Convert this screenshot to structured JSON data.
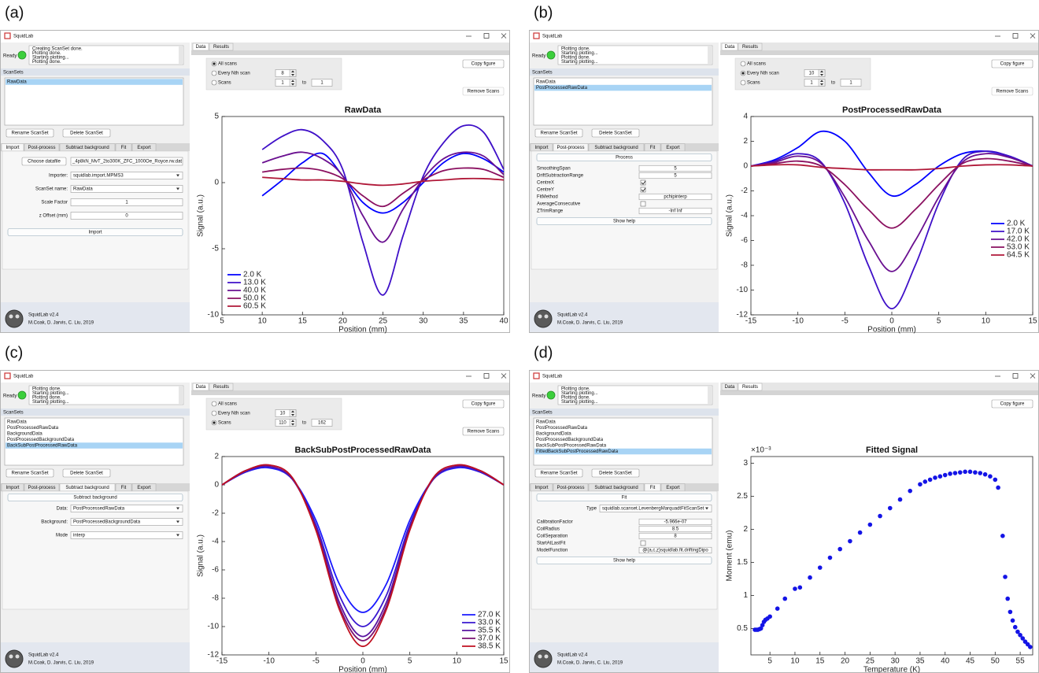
{
  "panels": [
    {
      "label": "(a)",
      "window_title": "SquidLab",
      "status": "Ready",
      "log": [
        "Creating ScanSet done.",
        "Plotting done.",
        "Starting plotting...",
        "Plotting done."
      ],
      "scansets_label": "ScanSets",
      "scansets": [
        "RawData"
      ],
      "selected_scanset": 0,
      "buttons": [
        "Rename ScanSet",
        "Delete ScanSet"
      ],
      "left_tabs": [
        "Import",
        "Post-process",
        "Subtract background",
        "Fit",
        "Export"
      ],
      "active_left_tab": 0,
      "form": [
        {
          "kind": "file",
          "text": "Choose datafile",
          "value": "_4p8kN_MvT_2to300K_ZFC_1000Oe_Royce.rw.dat"
        },
        {
          "kind": "dropdown",
          "label": "Importer:",
          "value": "squidlab.import.MPMS3"
        },
        {
          "kind": "dropdown",
          "label": "ScanSet name:",
          "value": "RawData"
        },
        {
          "kind": "field",
          "label": "Scale Factor",
          "value": 1
        },
        {
          "kind": "field",
          "label": "z Offset (mm)",
          "value": 0
        },
        {
          "kind": "button",
          "text": "Import"
        }
      ],
      "footer": [
        "SquidLab v2.4",
        "M.Coak, D. Jarvis, C. Liu, 2019"
      ],
      "right_tabs": [
        "Data",
        "Results"
      ],
      "active_right_tab": 0,
      "scan_options": {
        "options": [
          "All scans",
          "Every Nth scan",
          "Scans"
        ],
        "selected": 0,
        "nth": 8,
        "from": 1,
        "to_label": "to",
        "to": 1
      },
      "copy_button": "Copy figure",
      "remove_button": "Remove Scans",
      "remove_enabled": false,
      "chart": {
        "type": "line",
        "title": "RawData",
        "xlabel": "Position (mm)",
        "ylabel": "Signal (a.u.)",
        "x": [
          10,
          12.5,
          15,
          17.5,
          20,
          22.5,
          25,
          27.5,
          30,
          32.5,
          35,
          37.5,
          40
        ],
        "series": [
          {
            "name": "2.0 K",
            "color": "#0000ff",
            "values": [
              -1,
              0.2,
              1.5,
              2.2,
              0.5,
              -1.5,
              -2.3,
              -1.5,
              0,
              1.5,
              2.2,
              1.8,
              0.8
            ]
          },
          {
            "name": "13.0 K",
            "color": "#3f10c8",
            "values": [
              2.5,
              3.5,
              4.0,
              3.2,
              1.0,
              -4.5,
              -8.5,
              -4.0,
              0.5,
              3.0,
              4.3,
              3.8,
              1.0
            ]
          },
          {
            "name": "40.0 K",
            "color": "#6a1090",
            "values": [
              1.5,
              2.0,
              2.3,
              1.8,
              0.5,
              -2.5,
              -4.5,
              -2.0,
              0.3,
              1.8,
              2.3,
              2.0,
              0.6
            ]
          },
          {
            "name": "50.0 K",
            "color": "#8a1060",
            "values": [
              0.8,
              1.0,
              1.1,
              0.9,
              0.3,
              -1.0,
              -1.8,
              -0.8,
              0.2,
              0.9,
              1.1,
              1.0,
              0.4
            ]
          },
          {
            "name": "60.5 K",
            "color": "#b01838",
            "values": [
              0.4,
              0.3,
              0.2,
              0.2,
              0.1,
              -0.1,
              -0.2,
              -0.1,
              0.1,
              0.2,
              0.3,
              0.3,
              0.2
            ]
          }
        ],
        "xlim": [
          5,
          40
        ],
        "xticks": [
          5,
          10,
          15,
          20,
          25,
          30,
          35,
          40
        ],
        "ylim": [
          -10,
          5
        ],
        "yticks": [
          -10,
          -5,
          0,
          5
        ],
        "legend": "lower left"
      }
    },
    {
      "label": "(b)",
      "window_title": "SquidLab",
      "status": "Ready",
      "log": [
        "Plotting done.",
        "Starting plotting...",
        "Plotting done.",
        "Starting plotting..."
      ],
      "scansets_label": "ScanSets",
      "scansets": [
        "RawData",
        "PostProcessedRawData"
      ],
      "selected_scanset": 1,
      "buttons": [
        "Rename ScanSet",
        "Delete ScanSet"
      ],
      "left_tabs": [
        "Import",
        "Post-process",
        "Subtract background",
        "Fit",
        "Export"
      ],
      "active_left_tab": 1,
      "form": [
        {
          "kind": "button",
          "text": "Process"
        },
        {
          "kind": "prop",
          "label": "SmoothingSpan",
          "value": 5
        },
        {
          "kind": "prop",
          "label": "DriftSubtractionRange",
          "value": 5
        },
        {
          "kind": "check",
          "label": "CentreX",
          "checked": true
        },
        {
          "kind": "check",
          "label": "CentreY",
          "checked": true
        },
        {
          "kind": "prop",
          "label": "FitMethod",
          "value": "pchipinterp"
        },
        {
          "kind": "check",
          "label": "AverageConsecutive",
          "checked": false
        },
        {
          "kind": "prop",
          "label": "ZTrimRange",
          "value": "-Inf Inf"
        },
        {
          "kind": "button",
          "text": "Show help"
        }
      ],
      "footer": [
        "SquidLab v2.4",
        "M.Coak, D. Jarvis, C. Liu, 2019"
      ],
      "right_tabs": [
        "Data",
        "Results"
      ],
      "active_right_tab": 0,
      "scan_options": {
        "options": [
          "All scans",
          "Every Nth scan",
          "Scans"
        ],
        "selected": 1,
        "nth": 10,
        "from": 1,
        "to_label": "to",
        "to": 1
      },
      "copy_button": "Copy figure",
      "remove_button": "Remove Scans",
      "remove_enabled": false,
      "chart": {
        "type": "line",
        "title": "PostProcessedRawData",
        "xlabel": "Position (mm)",
        "ylabel": "Signal (a.u.)",
        "x": [
          -15,
          -12.5,
          -10,
          -7.5,
          -5,
          -2.5,
          0,
          2.5,
          5,
          7.5,
          10,
          12.5,
          15
        ],
        "series": [
          {
            "name": "2.0 K",
            "color": "#0000ff",
            "values": [
              0,
              0.5,
              1.5,
              2.8,
              2.0,
              -0.5,
              -2.4,
              -1.5,
              0,
              1.0,
              1.2,
              0.8,
              0
            ]
          },
          {
            "name": "17.0 K",
            "color": "#3f10c8",
            "values": [
              0,
              0.4,
              1.0,
              0.3,
              -3.0,
              -8,
              -11.5,
              -8,
              -3,
              0.5,
              1.2,
              0.8,
              0
            ]
          },
          {
            "name": "42.0 K",
            "color": "#6a1090",
            "values": [
              0,
              0.3,
              0.8,
              0.2,
              -2.5,
              -6,
              -8.5,
              -6,
              -2.5,
              0.3,
              1.0,
              0.7,
              0
            ]
          },
          {
            "name": "53.0 K",
            "color": "#8a1060",
            "values": [
              0,
              0.2,
              0.4,
              0,
              -1.5,
              -3.5,
              -5,
              -3.5,
              -1.5,
              0.2,
              0.6,
              0.4,
              0
            ]
          },
          {
            "name": "64.5 K",
            "color": "#b01838",
            "values": [
              0,
              0.1,
              0.1,
              -0.1,
              -0.2,
              -0.3,
              -0.3,
              -0.3,
              -0.2,
              0,
              0.1,
              0.1,
              0
            ]
          }
        ],
        "xlim": [
          -15,
          15
        ],
        "xticks": [
          -15,
          -10,
          -5,
          0,
          5,
          10,
          15
        ],
        "ylim": [
          -12,
          4
        ],
        "yticks": [
          -12,
          -10,
          -8,
          -6,
          -4,
          -2,
          0,
          2,
          4
        ],
        "legend": "center right"
      }
    },
    {
      "label": "(c)",
      "window_title": "SquidLab",
      "status": "Ready",
      "log": [
        "Plotting done.",
        "Starting plotting...",
        "Plotting done.",
        "Starting plotting..."
      ],
      "scansets_label": "ScanSets",
      "scansets": [
        "RawData",
        "PostProcessedRawData",
        "BackgroundData",
        "PostProcessedBackgroundData",
        "BackSubPostProcessedRawData"
      ],
      "selected_scanset": 4,
      "buttons": [
        "Rename ScanSet",
        "Delete ScanSet"
      ],
      "left_tabs": [
        "Import",
        "Post-process",
        "Subtract background",
        "Fit",
        "Export"
      ],
      "active_left_tab": 2,
      "form": [
        {
          "kind": "button",
          "text": "Subtract background"
        },
        {
          "kind": "dropdown",
          "label": "Data:",
          "value": "PostProcessedRawData"
        },
        {
          "kind": "dropdown",
          "label": "Background:",
          "value": "PostProcessedBackgroundData"
        },
        {
          "kind": "dropdown",
          "label": "Mode",
          "value": "interp"
        }
      ],
      "footer": [
        "SquidLab v2.4",
        "M.Coak, D. Jarvis, C. Liu, 2019"
      ],
      "right_tabs": [
        "Data",
        "Results"
      ],
      "active_right_tab": 0,
      "scan_options": {
        "options": [
          "All scans",
          "Every Nth scan",
          "Scans"
        ],
        "selected": 2,
        "nth": 10,
        "from": 110,
        "to_label": "to",
        "to": 162
      },
      "copy_button": "Copy figure",
      "remove_button": "Remove Scans",
      "remove_enabled": true,
      "chart": {
        "type": "line",
        "title": "BackSubPostProcessedRawData",
        "xlabel": "Position (mm)",
        "ylabel": "Signal (a.u.)",
        "x": [
          -15,
          -12.5,
          -10,
          -7.5,
          -5,
          -2.5,
          0,
          2.5,
          5,
          7.5,
          10,
          12.5,
          15
        ],
        "series": [
          {
            "name": "27.0 K",
            "color": "#1a1aff",
            "values": [
              0,
              0.9,
              1.2,
              0.4,
              -2.5,
              -7.0,
              -9.0,
              -7.0,
              -2.5,
              0.4,
              1.2,
              0.9,
              0
            ]
          },
          {
            "name": "33.0 K",
            "color": "#3a18d0",
            "values": [
              0,
              0.9,
              1.3,
              0.4,
              -2.8,
              -7.8,
              -10.0,
              -7.8,
              -2.8,
              0.4,
              1.3,
              0.9,
              0
            ]
          },
          {
            "name": "35.5 K",
            "color": "#5a14a0",
            "values": [
              0,
              1.0,
              1.3,
              0.4,
              -3.0,
              -8.3,
              -10.7,
              -8.3,
              -3.0,
              0.4,
              1.3,
              1.0,
              0
            ]
          },
          {
            "name": "37.0 K",
            "color": "#7a1070",
            "values": [
              0,
              1.0,
              1.4,
              0.5,
              -3.1,
              -8.6,
              -11.0,
              -8.6,
              -3.1,
              0.5,
              1.4,
              1.0,
              0
            ]
          },
          {
            "name": "38.5 K",
            "color": "#c01020",
            "values": [
              0,
              1.0,
              1.4,
              0.5,
              -3.2,
              -8.8,
              -11.4,
              -8.8,
              -3.2,
              0.5,
              1.4,
              1.0,
              0
            ]
          }
        ],
        "xlim": [
          -15,
          15
        ],
        "xticks": [
          -15,
          -10,
          -5,
          0,
          5,
          10,
          15
        ],
        "ylim": [
          -12,
          2
        ],
        "yticks": [
          -12,
          -10,
          -8,
          -6,
          -4,
          -2,
          0,
          2
        ],
        "legend": "lower right"
      }
    },
    {
      "label": "(d)",
      "window_title": "SquidLab",
      "status": "Ready",
      "log": [
        "Plotting done.",
        "Starting plotting...",
        "Plotting done.",
        "Starting plotting..."
      ],
      "scansets_label": "ScanSets",
      "scansets": [
        "RawData",
        "PostProcessedRawData",
        "BackgroundData",
        "PostProcessedBackgroundData",
        "BackSubPostProcessedRawData",
        "FittedBackSubPostProcessedRawData"
      ],
      "selected_scanset": 5,
      "buttons": [
        "Rename ScanSet",
        "Delete ScanSet"
      ],
      "left_tabs": [
        "Import",
        "Post-process",
        "Subtract background",
        "Fit",
        "Export"
      ],
      "active_left_tab": 3,
      "form": [
        {
          "kind": "button",
          "text": "Fit"
        },
        {
          "kind": "dropdown",
          "label": "Type",
          "value": "squidlab.scanset.LevenbergMarquadtFitScanSet"
        },
        {
          "kind": "prop",
          "label": "CalibrationFactor",
          "value": "-5.966e-07"
        },
        {
          "kind": "prop",
          "label": "CoilRadius",
          "value": 8.5
        },
        {
          "kind": "prop",
          "label": "CoilSeparation",
          "value": 8
        },
        {
          "kind": "check",
          "label": "StartAtLastFit",
          "checked": false
        },
        {
          "kind": "prop",
          "label": "ModelFunction",
          "value": "@(a,c,z)squidlab.fit.driftingDipo"
        },
        {
          "kind": "button",
          "text": "Show help"
        }
      ],
      "footer": [
        "SquidLab v2.4",
        "M.Coak, D. Jarvis, C. Liu, 2019"
      ],
      "right_tabs": [
        "Data",
        "Results"
      ],
      "active_right_tab": 1,
      "copy_button": "Copy figure",
      "chart": {
        "type": "scatter",
        "title": "Fitted Signal",
        "xlabel": "Temperature (K)",
        "ylabel": "Moment (emu)",
        "y_multiplier": "×10⁻³",
        "color": "#1414e6",
        "x": [
          2,
          2.3,
          2.6,
          2.9,
          3.2,
          3.5,
          3.8,
          4.1,
          4.5,
          5,
          6.5,
          8,
          10,
          11,
          13,
          15,
          17,
          19,
          21,
          23,
          25,
          27,
          29,
          31,
          33,
          35,
          36,
          37,
          38,
          39,
          40,
          41,
          42,
          43,
          44,
          45,
          46,
          47,
          48,
          49,
          50,
          50.6,
          51.5,
          52,
          52.5,
          53,
          53.5,
          54,
          54.5,
          55,
          55.5,
          56,
          56.5,
          57
        ],
        "values": [
          0.48,
          0.48,
          0.48,
          0.49,
          0.5,
          0.55,
          0.6,
          0.63,
          0.65,
          0.68,
          0.8,
          0.95,
          1.1,
          1.12,
          1.27,
          1.42,
          1.57,
          1.7,
          1.82,
          1.95,
          2.07,
          2.2,
          2.32,
          2.45,
          2.58,
          2.68,
          2.72,
          2.75,
          2.78,
          2.8,
          2.82,
          2.84,
          2.85,
          2.86,
          2.87,
          2.87,
          2.86,
          2.85,
          2.83,
          2.8,
          2.75,
          2.63,
          1.9,
          1.28,
          0.95,
          0.75,
          0.62,
          0.52,
          0.45,
          0.4,
          0.35,
          0.3,
          0.26,
          0.22
        ],
        "xlim": [
          1.2,
          57.5
        ],
        "xticks": [
          5,
          10,
          15,
          20,
          25,
          30,
          35,
          40,
          45,
          50,
          55
        ],
        "ylim": [
          0.1,
          3.1
        ],
        "yticks": [
          0.5,
          1,
          1.5,
          2,
          2.5,
          3
        ]
      }
    }
  ]
}
